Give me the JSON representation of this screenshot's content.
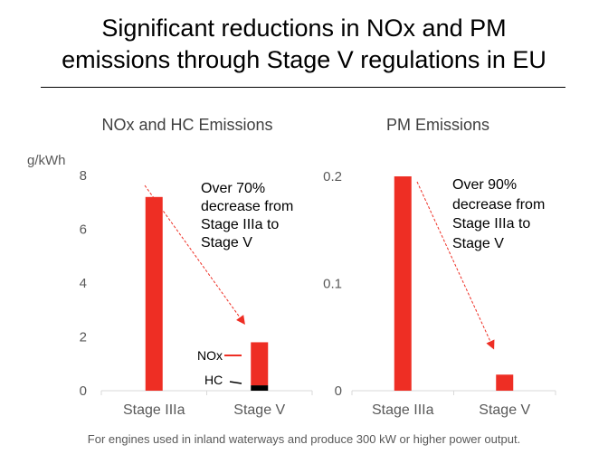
{
  "title_line1": "Significant reductions in NOx and PM",
  "title_line2": "emissions through Stage V regulations in EU",
  "footnote": "For engines used in inland waterways and produce 300 kW or higher power output.",
  "colors": {
    "bar": "#EE2E24",
    "hc": "#000000",
    "axis": "#D9D9D9"
  },
  "chart_data": [
    {
      "type": "bar",
      "stacked": true,
      "title": "NOx and HC Emissions",
      "ylabel": "g/kWh",
      "categories": [
        "Stage IIIa",
        "Stage V"
      ],
      "ylim": [
        0,
        8
      ],
      "yticks": [
        "0",
        "2",
        "4",
        "6",
        "8"
      ],
      "series": [
        {
          "name": "HC",
          "values": [
            0,
            0.2
          ],
          "color": "#000000"
        },
        {
          "name": "NOx",
          "values": [
            7.2,
            1.6
          ],
          "color": "#EE2E24"
        }
      ],
      "annotation": [
        "Over 70%",
        "decrease from",
        "Stage IIIa to",
        "Stage V"
      ],
      "grid": false
    },
    {
      "type": "bar",
      "title": "PM Emissions",
      "categories": [
        "Stage IIIa",
        "Stage V"
      ],
      "ylim": [
        0,
        0.2
      ],
      "yticks": [
        "0",
        "0.1",
        "0.2"
      ],
      "values": [
        0.2,
        0.015
      ],
      "annotation": [
        "Over 90%",
        "decrease from",
        "Stage IIIa to",
        "Stage V"
      ],
      "grid": false
    }
  ]
}
